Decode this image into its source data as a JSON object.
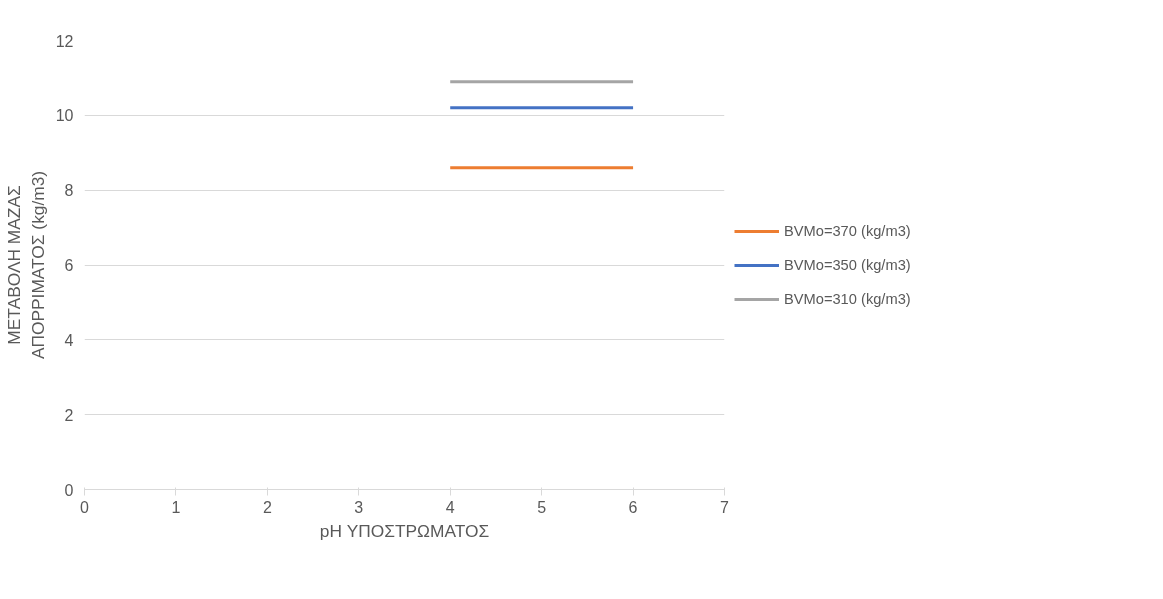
{
  "chart_data": {
    "type": "line",
    "xlabel": "pH ΥΠΟΣΤΡΩΜΑΤΟΣ",
    "ylabel": "ΜΕΤΑΒΟΛΗ ΜΑΖΑΣ\nΑΠΟΡΡΙΜΑΤΟΣ (kg/m3)",
    "x": [
      4,
      6
    ],
    "series": [
      {
        "name": "BVMo=370 (kg/m3)",
        "color": "#ed7d31",
        "values": [
          8.6,
          8.6
        ]
      },
      {
        "name": "BVMo=350 (kg/m3)",
        "color": "#4472c4",
        "values": [
          10.2,
          10.2
        ]
      },
      {
        "name": "BVMo=310 (kg/m3)",
        "color": "#a5a5a5",
        "values": [
          10.9,
          10.9
        ]
      }
    ],
    "xlim": [
      0,
      7
    ],
    "xticks": [
      0,
      1,
      2,
      3,
      4,
      5,
      6,
      7
    ],
    "ylim": [
      0,
      12
    ],
    "yticks": [
      0,
      2,
      4,
      6,
      8,
      10,
      12
    ],
    "grid": "y",
    "legend": "right",
    "marker": "none",
    "line_style": "solid"
  }
}
